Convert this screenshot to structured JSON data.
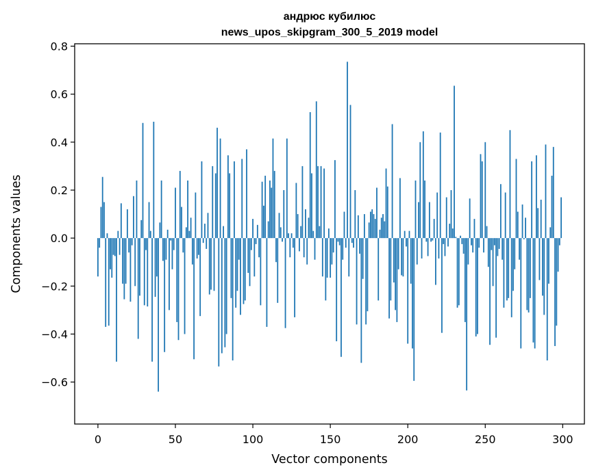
{
  "chart_data": {
    "type": "bar",
    "title_line1": "андрюс кубилюс",
    "title_line2": "news_upos_skipgram_300_5_2019 model",
    "xlabel": "Vector components",
    "ylabel": "Components values",
    "xlim": [
      -15,
      314
    ],
    "ylim": [
      -0.775,
      0.81
    ],
    "xticks": [
      0,
      50,
      100,
      150,
      200,
      250,
      300
    ],
    "xtick_labels": [
      "0",
      "50",
      "100",
      "150",
      "200",
      "250",
      "300"
    ],
    "yticks": [
      0.8,
      0.6,
      0.4,
      0.2,
      0.0,
      -0.2,
      -0.4,
      -0.6
    ],
    "ytick_labels": [
      "0.8",
      "0.6",
      "0.4",
      "0.2",
      "0.0",
      "−0.2",
      "−0.4",
      "−0.6"
    ],
    "bar_color": "#1f77b4",
    "grid": false,
    "values": [
      -0.16,
      -0.04,
      0.13,
      0.255,
      0.15,
      -0.37,
      0.02,
      -0.365,
      -0.13,
      -0.165,
      -0.07,
      -0.075,
      -0.515,
      0.03,
      -0.07,
      0.145,
      -0.19,
      -0.255,
      -0.19,
      0.12,
      -0.06,
      -0.265,
      -0.03,
      0.175,
      -0.2,
      0.24,
      -0.42,
      -0.24,
      0.075,
      0.48,
      -0.28,
      -0.05,
      -0.285,
      0.15,
      0.03,
      -0.515,
      0.485,
      -0.245,
      -0.16,
      -0.64,
      0.065,
      0.24,
      -0.095,
      -0.475,
      -0.09,
      0.035,
      -0.3,
      -0.01,
      -0.13,
      -0.05,
      0.21,
      -0.35,
      -0.425,
      0.28,
      0.13,
      -0.06,
      -0.4,
      0.045,
      0.24,
      0.03,
      0.085,
      -0.11,
      -0.505,
      0.19,
      -0.085,
      -0.07,
      -0.325,
      0.32,
      -0.02,
      0.06,
      -0.045,
      0.105,
      -0.235,
      -0.215,
      0.3,
      -0.22,
      0.27,
      0.46,
      -0.535,
      0.415,
      -0.48,
      0.05,
      -0.455,
      -0.4,
      0.345,
      0.27,
      -0.25,
      -0.51,
      0.32,
      -0.29,
      -0.22,
      -0.09,
      -0.32,
      0.33,
      -0.275,
      -0.26,
      0.37,
      -0.145,
      -0.2,
      -0.05,
      0.08,
      -0.16,
      -0.025,
      0.055,
      -0.08,
      -0.28,
      0.235,
      0.135,
      0.26,
      -0.37,
      0.07,
      0.24,
      0.21,
      0.415,
      0.28,
      -0.1,
      -0.27,
      0.105,
      0.045,
      -0.015,
      0.2,
      -0.375,
      0.415,
      0.02,
      -0.08,
      0.02,
      -0.04,
      -0.33,
      0.23,
      0.1,
      -0.055,
      0.05,
      0.3,
      -0.08,
      0.12,
      -0.11,
      0.085,
      0.525,
      0.27,
      0.03,
      -0.09,
      0.57,
      0.3,
      0.05,
      0.3,
      -0.16,
      0.29,
      -0.26,
      -0.165,
      0.04,
      -0.165,
      -0.11,
      -0.06,
      0.325,
      -0.43,
      -0.015,
      -0.03,
      -0.495,
      -0.09,
      0.11,
      -0.04,
      0.735,
      -0.16,
      0.555,
      -0.02,
      -0.04,
      0.2,
      -0.36,
      0.095,
      -0.065,
      -0.52,
      -0.17,
      0.1,
      -0.36,
      -0.305,
      0.065,
      0.11,
      0.12,
      0.1,
      0.08,
      0.21,
      -0.26,
      0.035,
      0.085,
      0.1,
      0.07,
      0.29,
      0.215,
      -0.335,
      -0.26,
      0.475,
      -0.185,
      -0.3,
      -0.35,
      -0.13,
      0.25,
      -0.155,
      -0.16,
      0.03,
      -0.035,
      -0.44,
      0.03,
      -0.19,
      -0.46,
      -0.595,
      0.24,
      -0.11,
      0.15,
      0.4,
      -0.085,
      0.445,
      0.24,
      -0.015,
      -0.075,
      0.15,
      -0.015,
      -0.01,
      0.08,
      -0.195,
      0.19,
      -0.085,
      0.44,
      -0.395,
      -0.025,
      -0.075,
      0.17,
      -0.035,
      0.06,
      0.2,
      0.04,
      0.635,
      0.005,
      -0.29,
      -0.28,
      0.01,
      -0.025,
      -0.065,
      -0.35,
      -0.635,
      -0.11,
      0.165,
      -0.03,
      -0.06,
      0.08,
      -0.41,
      -0.4,
      -0.04,
      0.35,
      0.32,
      -0.06,
      0.4,
      0.05,
      -0.12,
      -0.445,
      -0.05,
      -0.2,
      -0.03,
      -0.415,
      -0.075,
      -0.045,
      0.225,
      -0.09,
      -0.29,
      0.19,
      -0.26,
      -0.25,
      0.45,
      -0.33,
      -0.22,
      -0.13,
      0.33,
      0.11,
      -0.09,
      -0.46,
      0.14,
      -0.005,
      0.085,
      -0.3,
      -0.31,
      -0.25,
      0.32,
      -0.435,
      -0.46,
      0.345,
      0.125,
      -0.175,
      0.16,
      -0.24,
      -0.32,
      0.39,
      -0.51,
      -0.19,
      0.045,
      0.26,
      0.38,
      -0.45,
      -0.365,
      -0.14,
      -0.03,
      0.17
    ]
  }
}
